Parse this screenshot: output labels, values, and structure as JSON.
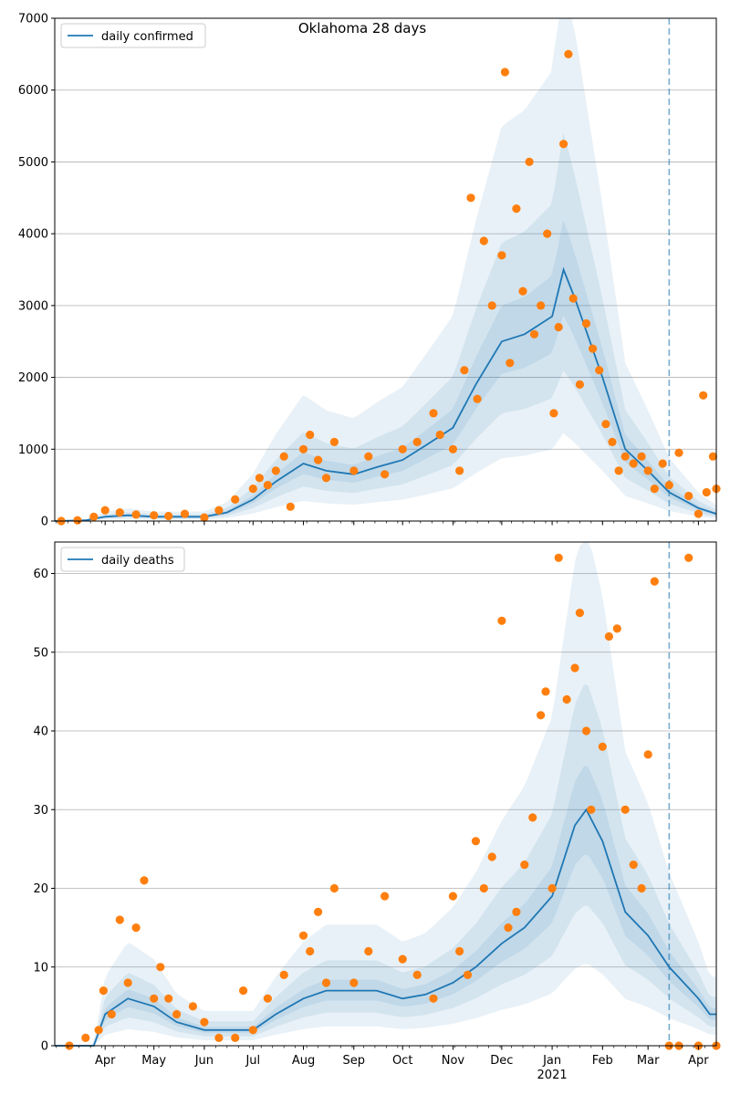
{
  "chart_data": [
    {
      "type": "line",
      "title": "Oklahoma 28 days",
      "ylim": [
        0,
        7000
      ],
      "yticks": [
        0,
        1000,
        2000,
        3000,
        4000,
        5000,
        6000,
        7000
      ],
      "xlim": [
        "2020-03-01",
        "2021-04-12"
      ],
      "x_tick_labels": [
        {
          "date": "2020-04-01",
          "label": "Apr"
        },
        {
          "date": "2020-05-01",
          "label": "May"
        },
        {
          "date": "2020-06-01",
          "label": "Jun"
        },
        {
          "date": "2020-07-01",
          "label": "Jul"
        },
        {
          "date": "2020-08-01",
          "label": "Aug"
        },
        {
          "date": "2020-09-01",
          "label": "Sep"
        },
        {
          "date": "2020-10-01",
          "label": "Oct"
        },
        {
          "date": "2020-11-01",
          "label": "Nov"
        },
        {
          "date": "2020-12-01",
          "label": "Dec"
        },
        {
          "date": "2021-01-01",
          "label": "Jan"
        },
        {
          "date": "2021-02-01",
          "label": "Feb"
        },
        {
          "date": "2021-03-01",
          "label": "Mar"
        },
        {
          "date": "2021-04-01",
          "label": "Apr"
        }
      ],
      "forecast_start": "2021-03-14",
      "grid": "horizontal",
      "legend_placement": "top-left",
      "series": [
        {
          "name": "daily confirmed",
          "role": "model line",
          "x": [
            "2020-03-01",
            "2020-03-20",
            "2020-04-01",
            "2020-04-15",
            "2020-05-01",
            "2020-05-15",
            "2020-06-01",
            "2020-06-15",
            "2020-07-01",
            "2020-07-15",
            "2020-08-01",
            "2020-08-15",
            "2020-09-01",
            "2020-09-15",
            "2020-10-01",
            "2020-10-15",
            "2020-11-01",
            "2020-11-15",
            "2020-12-01",
            "2020-12-15",
            "2021-01-01",
            "2021-01-08",
            "2021-01-15",
            "2021-02-01",
            "2021-02-15",
            "2021-03-01",
            "2021-03-14",
            "2021-04-01",
            "2021-04-12"
          ],
          "y": [
            0,
            10,
            60,
            80,
            60,
            60,
            60,
            120,
            300,
            550,
            800,
            700,
            650,
            750,
            850,
            1050,
            1300,
            1900,
            2500,
            2600,
            2850,
            3500,
            3100,
            2000,
            1000,
            700,
            400,
            180,
            100
          ]
        },
        {
          "name": "",
          "role": "observed points",
          "x": [
            "2020-03-05",
            "2020-03-15",
            "2020-03-25",
            "2020-04-01",
            "2020-04-10",
            "2020-04-20",
            "2020-05-01",
            "2020-05-10",
            "2020-05-20",
            "2020-06-01",
            "2020-06-10",
            "2020-06-20",
            "2020-07-01",
            "2020-07-05",
            "2020-07-10",
            "2020-07-15",
            "2020-07-20",
            "2020-07-24",
            "2020-08-01",
            "2020-08-05",
            "2020-08-10",
            "2020-08-15",
            "2020-08-20",
            "2020-09-01",
            "2020-09-10",
            "2020-09-20",
            "2020-10-01",
            "2020-10-10",
            "2020-10-20",
            "2020-10-24",
            "2020-11-01",
            "2020-11-05",
            "2020-11-08",
            "2020-11-12",
            "2020-11-16",
            "2020-11-20",
            "2020-11-25",
            "2020-12-01",
            "2020-12-03",
            "2020-12-06",
            "2020-12-10",
            "2020-12-14",
            "2020-12-18",
            "2020-12-21",
            "2020-12-25",
            "2020-12-29",
            "2021-01-02",
            "2021-01-05",
            "2021-01-08",
            "2021-01-11",
            "2021-01-14",
            "2021-01-18",
            "2021-01-22",
            "2021-01-26",
            "2021-01-30",
            "2021-02-03",
            "2021-02-07",
            "2021-02-11",
            "2021-02-15",
            "2021-02-20",
            "2021-02-25",
            "2021-03-01",
            "2021-03-05",
            "2021-03-10",
            "2021-03-14",
            "2021-03-20",
            "2021-03-26",
            "2021-04-01",
            "2021-04-04",
            "2021-04-06",
            "2021-04-10",
            "2021-04-12"
          ],
          "y": [
            0,
            10,
            60,
            150,
            120,
            90,
            80,
            70,
            100,
            50,
            150,
            300,
            450,
            600,
            500,
            700,
            900,
            200,
            1000,
            1200,
            850,
            600,
            1100,
            700,
            900,
            650,
            1000,
            1100,
            1500,
            1200,
            1000,
            700,
            2100,
            4500,
            1700,
            3900,
            3000,
            3700,
            6250,
            2200,
            4350,
            3200,
            5000,
            2600,
            3000,
            4000,
            1500,
            2700,
            5250,
            6500,
            3100,
            1900,
            2750,
            2400,
            2100,
            1350,
            1100,
            700,
            900,
            800,
            900,
            700,
            450,
            800,
            500,
            950,
            350,
            100,
            1750,
            400,
            900,
            450
          ]
        }
      ]
    },
    {
      "type": "line",
      "title": "",
      "ylim": [
        0,
        64
      ],
      "yticks": [
        0,
        10,
        20,
        30,
        40,
        50,
        60
      ],
      "xlim": [
        "2020-03-01",
        "2021-04-12"
      ],
      "x_tick_labels": [
        {
          "date": "2020-04-01",
          "label": "Apr"
        },
        {
          "date": "2020-05-01",
          "label": "May"
        },
        {
          "date": "2020-06-01",
          "label": "Jun"
        },
        {
          "date": "2020-07-01",
          "label": "Jul"
        },
        {
          "date": "2020-08-01",
          "label": "Aug"
        },
        {
          "date": "2020-09-01",
          "label": "Sep"
        },
        {
          "date": "2020-10-01",
          "label": "Oct"
        },
        {
          "date": "2020-11-01",
          "label": "Nov"
        },
        {
          "date": "2020-12-01",
          "label": "Dec"
        },
        {
          "date": "2021-01-01",
          "label": "Jan"
        },
        {
          "date": "2021-02-01",
          "label": "Feb"
        },
        {
          "date": "2021-03-01",
          "label": "Mar"
        },
        {
          "date": "2021-04-01",
          "label": "Apr"
        }
      ],
      "year_label": "2021",
      "forecast_start": "2021-03-14",
      "grid": "horizontal",
      "legend_placement": "top-left",
      "series": [
        {
          "name": "daily deaths",
          "role": "model line",
          "x": [
            "2020-03-01",
            "2020-03-25",
            "2020-04-01",
            "2020-04-15",
            "2020-05-01",
            "2020-05-15",
            "2020-06-01",
            "2020-06-15",
            "2020-07-01",
            "2020-07-15",
            "2020-08-01",
            "2020-08-15",
            "2020-09-01",
            "2020-09-15",
            "2020-10-01",
            "2020-10-15",
            "2020-11-01",
            "2020-11-15",
            "2020-12-01",
            "2020-12-15",
            "2021-01-01",
            "2021-01-15",
            "2021-01-22",
            "2021-02-01",
            "2021-02-15",
            "2021-03-01",
            "2021-03-14",
            "2021-04-01",
            "2021-04-08",
            "2021-04-12"
          ],
          "y": [
            0,
            0,
            4,
            6,
            5,
            3,
            2,
            2,
            2,
            4,
            6,
            7,
            7,
            7,
            6,
            6.5,
            8,
            10,
            13,
            15,
            19,
            28,
            30,
            26,
            17,
            14,
            10,
            6,
            4,
            4
          ]
        },
        {
          "name": "",
          "role": "observed points",
          "x": [
            "2020-03-10",
            "2020-03-20",
            "2020-03-28",
            "2020-03-31",
            "2020-04-05",
            "2020-04-10",
            "2020-04-15",
            "2020-04-20",
            "2020-04-25",
            "2020-05-01",
            "2020-05-05",
            "2020-05-10",
            "2020-05-15",
            "2020-05-25",
            "2020-06-01",
            "2020-06-10",
            "2020-06-20",
            "2020-06-25",
            "2020-07-01",
            "2020-07-10",
            "2020-07-20",
            "2020-08-01",
            "2020-08-05",
            "2020-08-10",
            "2020-08-15",
            "2020-08-20",
            "2020-09-01",
            "2020-09-10",
            "2020-09-20",
            "2020-10-01",
            "2020-10-10",
            "2020-10-20",
            "2020-11-01",
            "2020-11-05",
            "2020-11-10",
            "2020-11-15",
            "2020-11-20",
            "2020-11-25",
            "2020-12-01",
            "2020-12-05",
            "2020-12-10",
            "2020-12-15",
            "2020-12-20",
            "2020-12-25",
            "2020-12-28",
            "2021-01-01",
            "2021-01-05",
            "2021-01-10",
            "2021-01-15",
            "2021-01-18",
            "2021-01-22",
            "2021-01-25",
            "2021-02-01",
            "2021-02-05",
            "2021-02-10",
            "2021-02-15",
            "2021-02-20",
            "2021-02-25",
            "2021-03-01",
            "2021-03-05",
            "2021-03-14",
            "2021-03-20",
            "2021-03-26",
            "2021-04-01",
            "2021-04-12"
          ],
          "y": [
            0,
            1,
            2,
            7,
            4,
            16,
            8,
            15,
            21,
            6,
            10,
            6,
            4,
            5,
            3,
            1,
            1,
            7,
            2,
            6,
            9,
            14,
            12,
            17,
            8,
            20,
            8,
            12,
            19,
            11,
            9,
            6,
            19,
            12,
            9,
            26,
            20,
            24,
            54,
            15,
            17,
            23,
            29,
            42,
            45,
            20,
            62,
            44,
            48,
            55,
            40,
            30,
            38,
            52,
            53,
            30,
            23,
            20,
            37,
            59,
            0,
            0,
            62,
            0,
            0
          ]
        }
      ]
    }
  ]
}
